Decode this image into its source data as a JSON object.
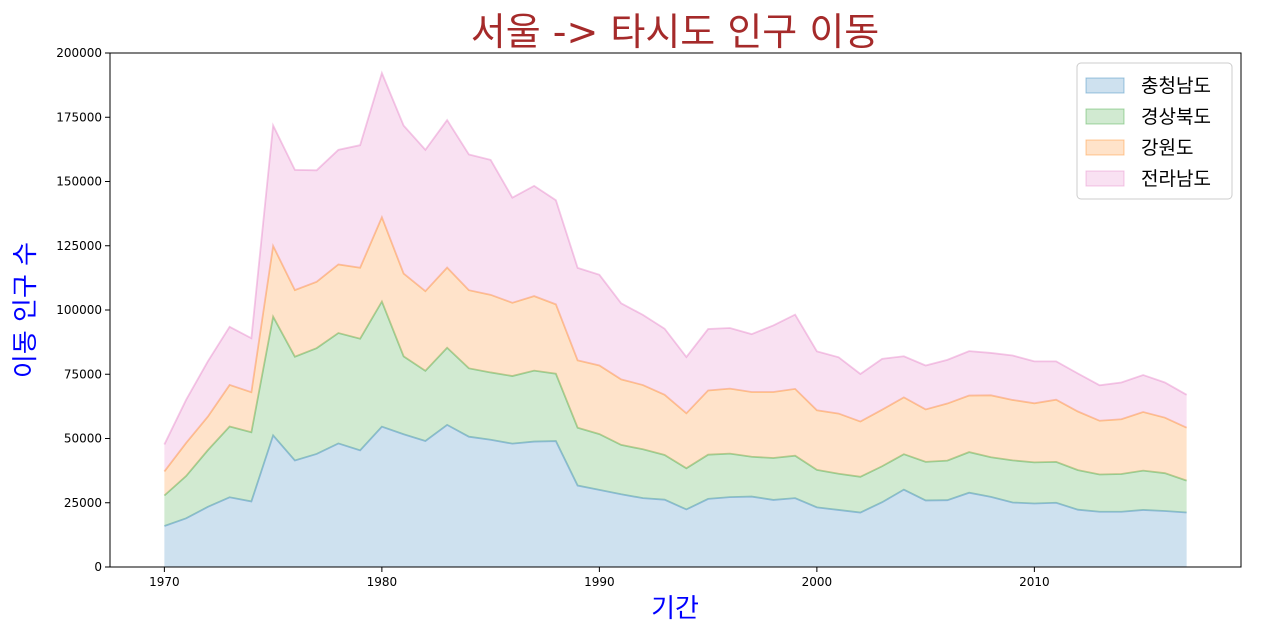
{
  "chart_data": {
    "type": "area",
    "stacked": true,
    "title": "서울 -> 타시도 인구 이동",
    "xlabel": "기간",
    "ylabel": "이동 인구 수",
    "title_color": "#a52a2a",
    "label_color": "#0000ff",
    "xlim": [
      1967.5,
      2019.5
    ],
    "ylim": [
      0,
      200000
    ],
    "xticks": [
      1970,
      1980,
      1990,
      2000,
      2010
    ],
    "xtick_labels": [
      "1970",
      "1980",
      "1990",
      "2000",
      "2010"
    ],
    "yticks": [
      0,
      25000,
      50000,
      75000,
      100000,
      125000,
      150000,
      175000,
      200000
    ],
    "ytick_labels": [
      "0",
      "25000",
      "50000",
      "75000",
      "100000",
      "125000",
      "150000",
      "175000",
      "200000"
    ],
    "grid": false,
    "legend_position": "upper right",
    "x": [
      1970,
      1971,
      1972,
      1973,
      1974,
      1975,
      1976,
      1977,
      1978,
      1979,
      1980,
      1981,
      1982,
      1983,
      1984,
      1985,
      1986,
      1987,
      1988,
      1989,
      1990,
      1991,
      1992,
      1993,
      1994,
      1995,
      1996,
      1997,
      1998,
      1999,
      2000,
      2001,
      2002,
      2003,
      2004,
      2005,
      2006,
      2007,
      2008,
      2009,
      2010,
      2011,
      2012,
      2013,
      2014,
      2015,
      2016,
      2017
    ],
    "series": [
      {
        "name": "충청남도",
        "color": "#1f77b4",
        "values": [
          15954,
          18943,
          23406,
          27139,
          25509,
          51205,
          41447,
          43993,
          48091,
          45388,
          54619,
          51656,
          49017,
          55300,
          50700,
          49500,
          48000,
          48800,
          49000,
          31700,
          30000,
          28300,
          26800,
          26200,
          22400,
          26500,
          27200,
          27400,
          26100,
          26800,
          23200,
          22200,
          21200,
          25200,
          30100,
          25900,
          26000,
          28900,
          27300,
          25100,
          24700,
          25000,
          22300,
          21500,
          21500,
          22200,
          21800,
          21200
        ]
      },
      {
        "name": "경상북도",
        "color": "#2ca02c",
        "values": [
          11868,
          16459,
          22073,
          27531,
          26902,
          46208,
          40376,
          41155,
          42940,
          43442,
          48659,
          30300,
          27300,
          30000,
          26600,
          26200,
          26300,
          27600,
          26200,
          22500,
          21700,
          19200,
          19000,
          17400,
          16000,
          17200,
          16900,
          15500,
          16300,
          16500,
          14600,
          14100,
          13900,
          14000,
          13800,
          15000,
          15400,
          15800,
          15400,
          16400,
          16000,
          15900,
          15400,
          14500,
          14700,
          15300,
          14700,
          12400
        ]
      },
      {
        "name": "강원도",
        "color": "#ff7f0e",
        "values": [
          9352,
          12885,
          13049,
          16170,
          15600,
          27500,
          25900,
          25800,
          26700,
          27600,
          32800,
          32200,
          31000,
          31200,
          30400,
          30200,
          28500,
          29000,
          27000,
          26200,
          26700,
          25500,
          25000,
          23400,
          21400,
          25000,
          25300,
          25200,
          25700,
          26000,
          23200,
          23400,
          21500,
          22000,
          22100,
          20400,
          22200,
          22000,
          24100,
          23500,
          23000,
          24200,
          22800,
          20900,
          21300,
          22800,
          21600,
          20600
        ]
      },
      {
        "name": "전라남도",
        "color": "#e377c2",
        "values": [
          10513,
          16755,
          21520,
          22625,
          21000,
          46900,
          46800,
          43400,
          44600,
          47700,
          56100,
          57600,
          55000,
          57400,
          52800,
          52500,
          40900,
          42900,
          40500,
          36000,
          35300,
          29600,
          27300,
          25700,
          21900,
          23900,
          23600,
          22500,
          25900,
          28900,
          22900,
          21900,
          18500,
          19800,
          16000,
          17100,
          17000,
          17300,
          16500,
          17300,
          16300,
          14900,
          14800,
          13800,
          14300,
          14400,
          13700,
          12800
        ]
      }
    ]
  }
}
